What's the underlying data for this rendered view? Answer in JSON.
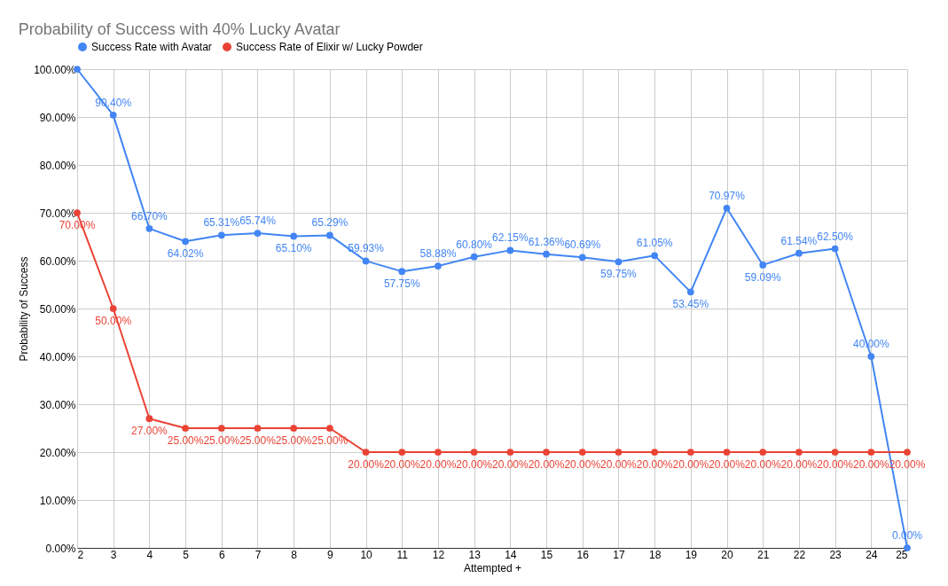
{
  "chart_data": {
    "type": "line",
    "title": "Probability of Success with 40% Lucky Avatar",
    "xlabel": "Attempted +",
    "ylabel": "Probability of Success",
    "x": [
      2,
      3,
      4,
      5,
      6,
      7,
      8,
      9,
      10,
      11,
      12,
      13,
      14,
      15,
      16,
      17,
      18,
      19,
      20,
      21,
      22,
      23,
      24,
      25
    ],
    "xlim": [
      2,
      25
    ],
    "xticks": [
      2,
      3,
      4,
      5,
      6,
      7,
      8,
      9,
      10,
      11,
      12,
      13,
      14,
      15,
      16,
      17,
      18,
      19,
      20,
      21,
      22,
      23,
      24,
      25
    ],
    "ylim": [
      0,
      100
    ],
    "yticks": [
      {
        "value": 0,
        "label": "0.00%"
      },
      {
        "value": 10,
        "label": "10.00%"
      },
      {
        "value": 20,
        "label": "20.00%"
      },
      {
        "value": 30,
        "label": "30.00%"
      },
      {
        "value": 40,
        "label": "40.00%"
      },
      {
        "value": 50,
        "label": "50.00%"
      },
      {
        "value": 60,
        "label": "60.00%"
      },
      {
        "value": 70,
        "label": "70.00%"
      },
      {
        "value": 80,
        "label": "80.00%"
      },
      {
        "value": 90,
        "label": "90.00%"
      },
      {
        "value": 100,
        "label": "100.00%"
      }
    ],
    "series": [
      {
        "name": "Success Rate with Avatar",
        "color": "#4285f4",
        "values": [
          100,
          90.4,
          66.7,
          64.02,
          65.31,
          65.74,
          65.1,
          65.29,
          59.93,
          57.75,
          58.88,
          60.8,
          62.15,
          61.36,
          60.69,
          59.75,
          61.05,
          53.45,
          70.97,
          59.09,
          61.54,
          62.5,
          40,
          0
        ],
        "value_labels": [
          null,
          "90.40%",
          "66.70%",
          "64.02%",
          "65.31%",
          "65.74%",
          "65.10%",
          "65.29%",
          "59.93%",
          "57.75%",
          "58.88%",
          "60.80%",
          "62.15%",
          "61.36%",
          "60.69%",
          "59.75%",
          "61.05%",
          "53.45%",
          "70.97%",
          "59.09%",
          "61.54%",
          "62.50%",
          "40.00%",
          "0.00%"
        ]
      },
      {
        "name": "Success Rate of Elixir w/ Lucky Powder",
        "color": "#ea4335",
        "values": [
          70,
          50,
          27,
          25,
          25,
          25,
          25,
          25,
          20,
          20,
          20,
          20,
          20,
          20,
          20,
          20,
          20,
          20,
          20,
          20,
          20,
          20,
          20,
          20
        ],
        "value_labels": [
          "70.00%",
          "50.00%",
          "27.00%",
          "25.00%",
          "25.00%",
          "25.00%",
          "25.00%",
          "25.00%",
          "20.00%",
          "20.00%",
          "20.00%",
          "20.00%",
          "20.00%",
          "20.00%",
          "20.00%",
          "20.00%",
          "20.00%",
          "20.00%",
          "20.00%",
          "20.00%",
          "20.00%",
          "20.00%",
          "20.00%",
          "20.00%"
        ]
      }
    ],
    "legend": "top",
    "grid": true,
    "marker": "circle",
    "line_style": "solid"
  }
}
